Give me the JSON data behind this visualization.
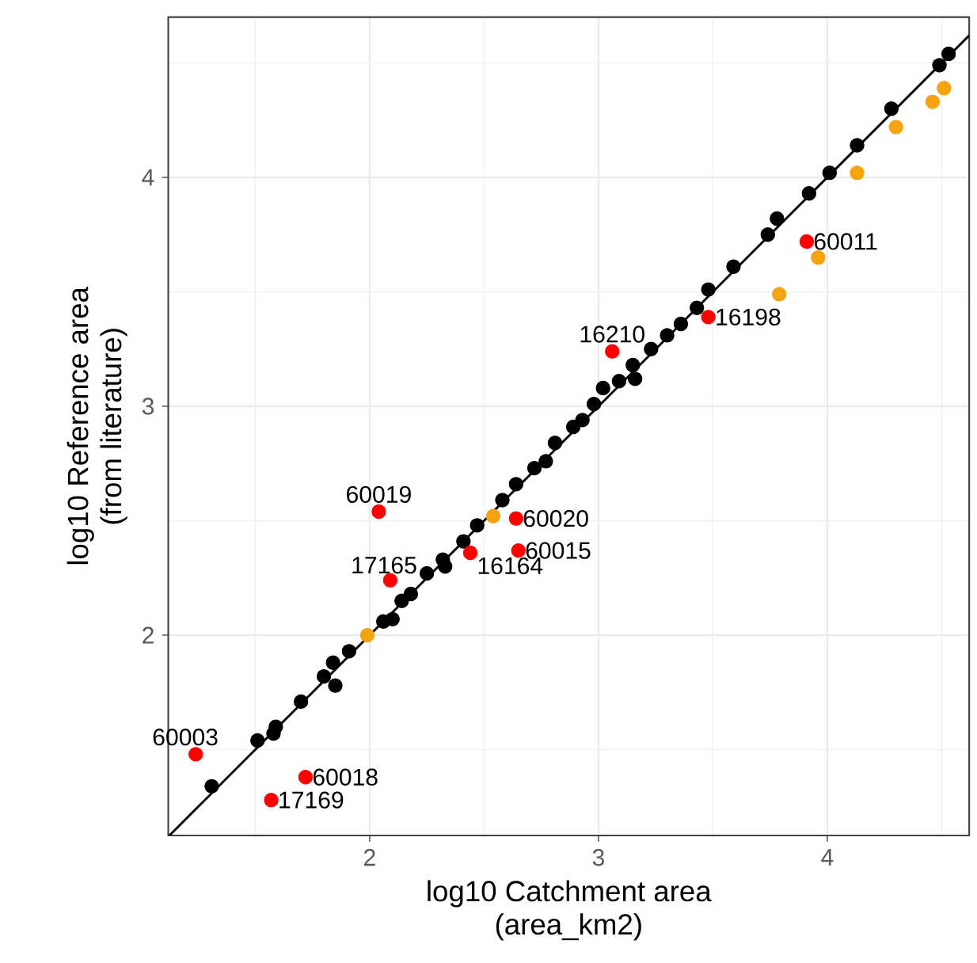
{
  "chart_data": {
    "type": "scatter",
    "xlabel": "log10 Catchment area\n(area_km2)",
    "ylabel": "log10 Reference area\n(from literature)",
    "xlim": [
      1.12,
      4.62
    ],
    "ylim": [
      1.125,
      4.7
    ],
    "xticks": [
      2,
      3,
      4
    ],
    "yticks": [
      2,
      3,
      4
    ],
    "grid": true,
    "series": [
      {
        "type": "line",
        "color": "#000000",
        "x": [
          1.125,
          4.62
        ],
        "values": [
          1.125,
          4.62
        ],
        "marker": "none",
        "line_style": "solid"
      },
      {
        "color": "#000000",
        "marker": "circle",
        "x": [
          1.31,
          1.51,
          1.58,
          1.59,
          1.7,
          1.8,
          1.85,
          1.84,
          1.9,
          1.91,
          2.06,
          2.1,
          2.14,
          2.18,
          2.25,
          2.33,
          2.32,
          2.41,
          2.47,
          2.58,
          2.64,
          2.72,
          2.77,
          2.81,
          2.89,
          2.93,
          2.98,
          3.02,
          3.09,
          3.16,
          3.15,
          3.23,
          3.3,
          3.36,
          3.43,
          3.48,
          3.59,
          3.74,
          3.78,
          3.92,
          4.01,
          4.13,
          4.28,
          4.49,
          4.53
        ],
        "values": [
          1.34,
          1.54,
          1.57,
          1.6,
          1.71,
          1.82,
          1.78,
          1.88,
          null,
          1.93,
          2.06,
          2.07,
          2.15,
          2.18,
          2.27,
          2.3,
          2.33,
          2.41,
          2.48,
          2.59,
          2.66,
          2.73,
          2.76,
          2.84,
          2.91,
          2.94,
          3.01,
          3.08,
          3.11,
          3.12,
          3.18,
          3.25,
          3.31,
          3.36,
          3.43,
          3.51,
          3.61,
          3.75,
          3.82,
          3.93,
          4.02,
          4.14,
          4.3,
          4.49,
          4.54
        ]
      },
      {
        "color": "#f5a30f",
        "marker": "circle",
        "x": [
          4.51,
          4.46,
          4.3,
          4.13,
          3.96,
          3.79,
          2.54,
          1.99
        ],
        "values": [
          4.39,
          4.33,
          4.22,
          4.02,
          3.65,
          3.49,
          2.52,
          2.0
        ]
      },
      {
        "color": "#ff0000",
        "marker": "circle",
        "x": [
          3.91,
          3.48,
          3.06,
          2.04,
          2.64,
          2.65,
          2.44,
          2.09,
          1.24,
          1.72,
          1.57
        ],
        "values": [
          3.72,
          3.39,
          3.24,
          2.54,
          2.51,
          2.37,
          2.36,
          2.24,
          1.48,
          1.38,
          1.28
        ]
      }
    ],
    "annotations": [
      {
        "text": "60011",
        "x": 3.91,
        "y": 3.72
      },
      {
        "text": "16198",
        "x": 3.48,
        "y": 3.39
      },
      {
        "text": "16210",
        "x": 3.06,
        "y": 3.24
      },
      {
        "text": "60019",
        "x": 2.04,
        "y": 2.54
      },
      {
        "text": "60020",
        "x": 2.64,
        "y": 2.51
      },
      {
        "text": "60015",
        "x": 2.65,
        "y": 2.37
      },
      {
        "text": "16164",
        "x": 2.44,
        "y": 2.36
      },
      {
        "text": "17165",
        "x": 2.09,
        "y": 2.24
      },
      {
        "text": "60003",
        "x": 1.24,
        "y": 1.48
      },
      {
        "text": "60018",
        "x": 1.72,
        "y": 1.38
      },
      {
        "text": "17169",
        "x": 1.57,
        "y": 1.28
      }
    ]
  }
}
